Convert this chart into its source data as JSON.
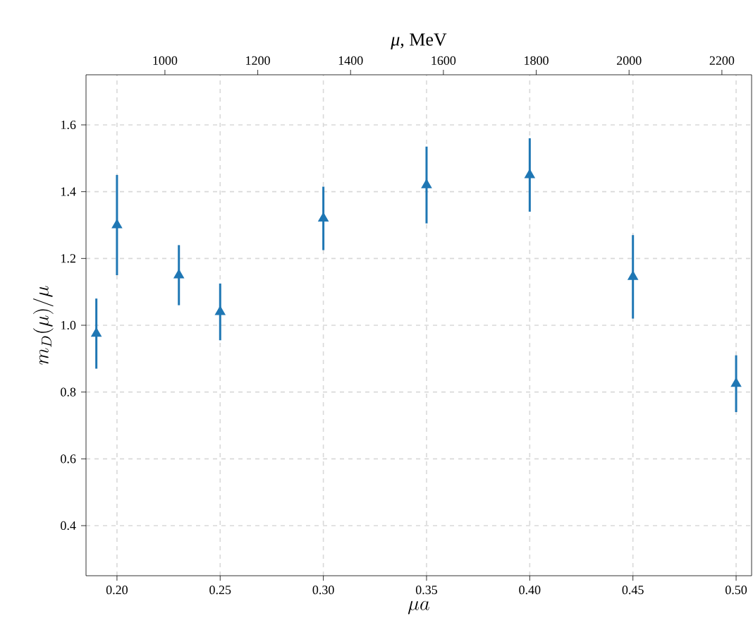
{
  "chart_data": {
    "type": "scatter",
    "xlabel": "\\mu a",
    "ylabel": "m_D(\\mu)/\\mu",
    "x2label": "*μ*, MeV",
    "color": "#1f77b4",
    "marker": "triangle",
    "grid": true,
    "x": [
      0.19,
      0.2,
      0.23,
      0.25,
      0.3,
      0.35,
      0.4,
      0.45,
      0.5
    ],
    "values": [
      0.975,
      1.3,
      1.15,
      1.04,
      1.32,
      1.42,
      1.45,
      1.145,
      0.825
    ],
    "errors": [
      0.105,
      0.15,
      0.09,
      0.085,
      0.095,
      0.115,
      0.11,
      0.125,
      0.085
    ],
    "xlim": [
      0.185,
      0.5075
    ],
    "ylim": [
      0.25,
      1.75
    ],
    "xticks": [
      {
        "value": 0.2,
        "label": "0.20"
      },
      {
        "value": 0.25,
        "label": "0.25"
      },
      {
        "value": 0.3,
        "label": "0.30"
      },
      {
        "value": 0.35,
        "label": "0.35"
      },
      {
        "value": 0.4,
        "label": "0.40"
      },
      {
        "value": 0.45,
        "label": "0.45"
      },
      {
        "value": 0.5,
        "label": "0.50"
      }
    ],
    "yticks": [
      0.4,
      0.6,
      0.8,
      {
        "value": 1.0,
        "label": "1.0"
      },
      1.2,
      1.4,
      1.6
    ],
    "x2lim": [
      830,
      2264
    ],
    "x2ticks": [
      1000,
      1200,
      1400,
      1600,
      1800,
      2000,
      2200
    ]
  }
}
